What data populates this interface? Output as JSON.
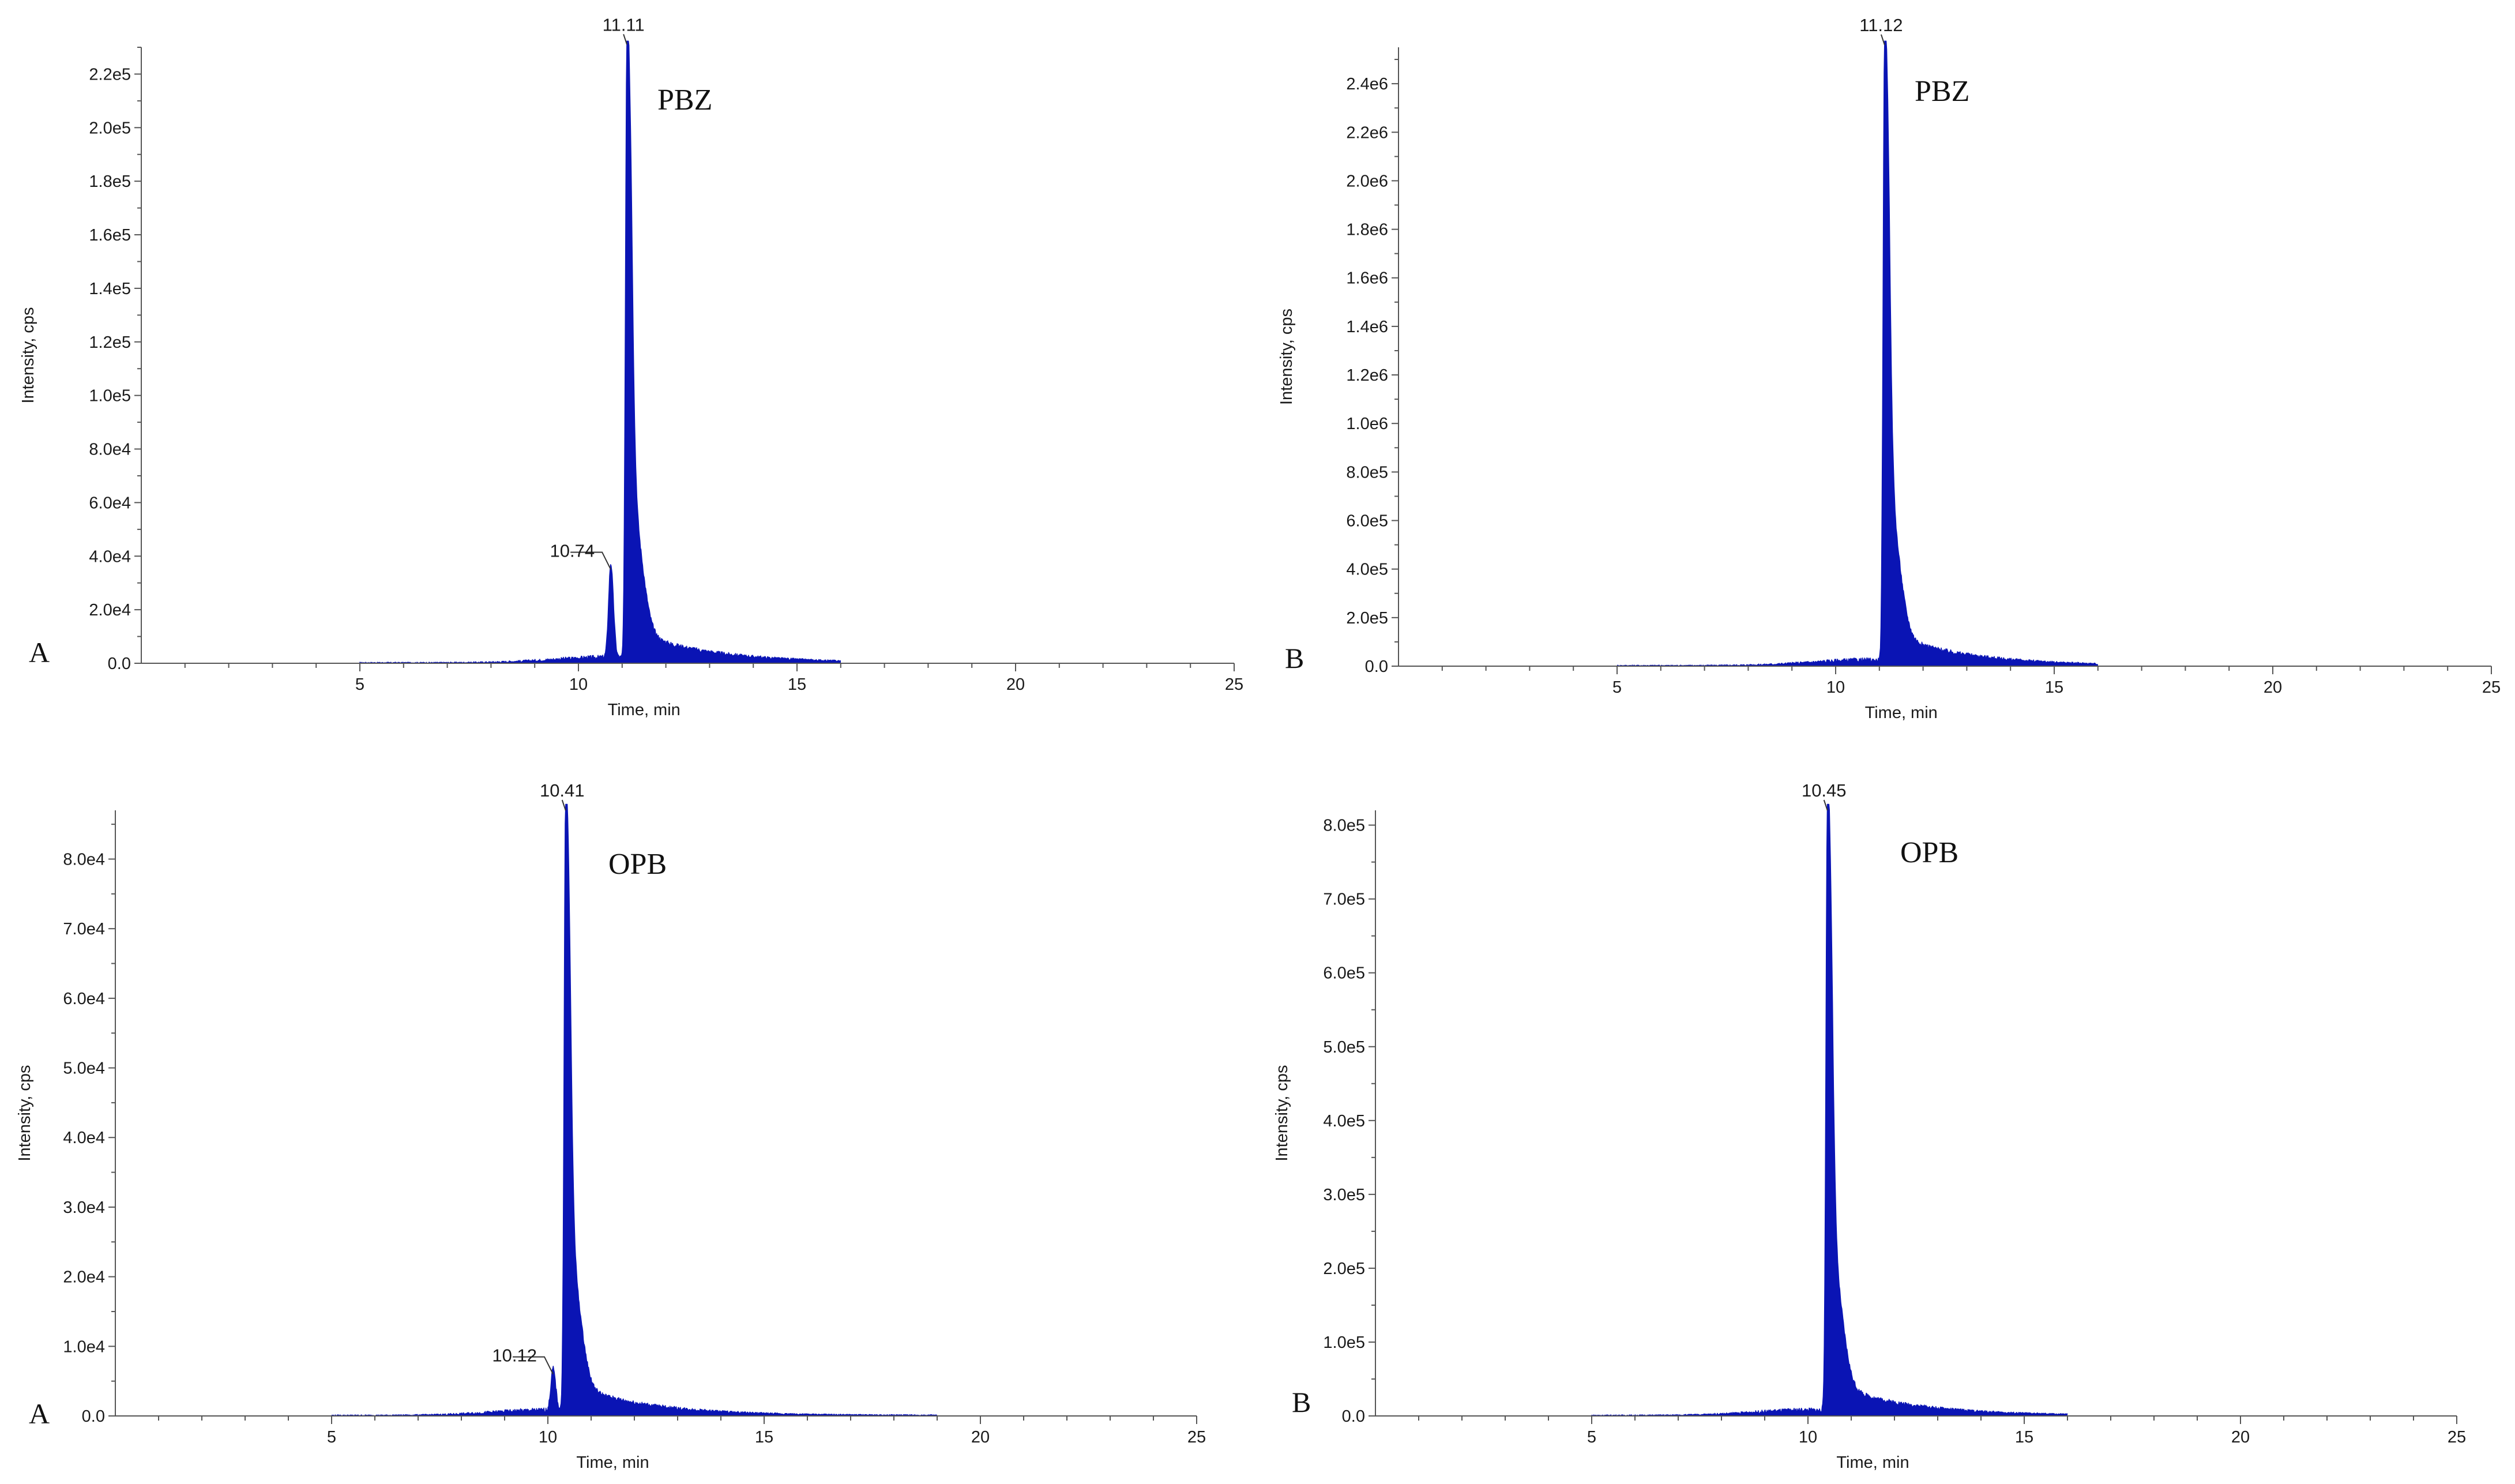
{
  "colors": {
    "trace": "#0a14b4",
    "axis": "#555555",
    "text": "#1a1a1a"
  },
  "chart_data": [
    {
      "type": "area",
      "panel_letter": "A",
      "compound_label": "PBZ",
      "xlabel": "Time, min",
      "ylabel": "Intensity, cps",
      "xlim": [
        0,
        25
      ],
      "ylim": [
        0,
        230000
      ],
      "x_ticks": [
        "5",
        "10",
        "15",
        "20",
        "25"
      ],
      "y_ticks": [
        "0.0",
        "2.0e4",
        "4.0e4",
        "6.0e4",
        "8.0e4",
        "1.0e5",
        "1.2e5",
        "1.4e5",
        "1.6e5",
        "1.8e5",
        "2.0e5",
        "2.2e5"
      ],
      "peaks": [
        {
          "label": "11.11",
          "x": 11.11,
          "y": 231000
        },
        {
          "label": "10.74",
          "x": 10.74,
          "y": 35000
        }
      ],
      "trace_range": [
        5,
        16
      ]
    },
    {
      "type": "area",
      "panel_letter": "B",
      "compound_label": "PBZ",
      "xlabel": "Time, min",
      "ylabel": "Intensity, cps",
      "xlim": [
        0,
        25
      ],
      "ylim": [
        0,
        2550000
      ],
      "x_ticks": [
        "5",
        "10",
        "15",
        "20",
        "25"
      ],
      "y_ticks": [
        "0.0",
        "2.0e5",
        "4.0e5",
        "6.0e5",
        "8.0e5",
        "1.0e6",
        "1.2e6",
        "1.4e6",
        "1.6e6",
        "1.8e6",
        "2.0e6",
        "2.2e6",
        "2.4e6"
      ],
      "peaks": [
        {
          "label": "11.12",
          "x": 11.12,
          "y": 2560000
        }
      ],
      "trace_range": [
        5,
        16
      ]
    },
    {
      "type": "area",
      "panel_letter": "A",
      "compound_label": "OPB",
      "xlabel": "Time, min",
      "ylabel": "Intensity, cps",
      "xlim": [
        0,
        25
      ],
      "ylim": [
        0,
        87000
      ],
      "x_ticks": [
        "5",
        "10",
        "15",
        "20",
        "25"
      ],
      "y_ticks": [
        "0.0",
        "1.0e4",
        "2.0e4",
        "3.0e4",
        "4.0e4",
        "5.0e4",
        "6.0e4",
        "7.0e4",
        "8.0e4"
      ],
      "peaks": [
        {
          "label": "10.41",
          "x": 10.41,
          "y": 87000
        },
        {
          "label": "10.12",
          "x": 10.12,
          "y": 6000
        }
      ],
      "trace_range": [
        5,
        19
      ]
    },
    {
      "type": "area",
      "panel_letter": "B",
      "compound_label": "OPB",
      "xlabel": "Time, min",
      "ylabel": "Intensity, cps",
      "xlim": [
        0,
        25
      ],
      "ylim": [
        0,
        820000
      ],
      "x_ticks": [
        "5",
        "10",
        "15",
        "20",
        "25"
      ],
      "y_ticks": [
        "0.0",
        "1.0e5",
        "2.0e5",
        "3.0e5",
        "4.0e5",
        "5.0e5",
        "6.0e5",
        "7.0e5",
        "8.0e5"
      ],
      "peaks": [
        {
          "label": "10.45",
          "x": 10.45,
          "y": 820000
        }
      ],
      "trace_range": [
        5,
        16
      ]
    }
  ]
}
